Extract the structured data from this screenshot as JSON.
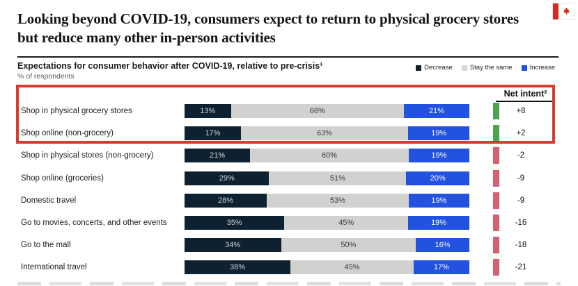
{
  "slide": {
    "title": "Looking beyond COVID-19, consumers expect to return to physical grocery stores but reduce many other in-person activities",
    "flag_icon": "canada-flag"
  },
  "header": {
    "subtitle": "Expectations for consumer behavior after COVID-19, relative to pre-crisis¹",
    "unit_label": "% of respondents",
    "net_intent_label": "Net intent²"
  },
  "legend": {
    "position": "top-right",
    "items": [
      {
        "label": "Decrease",
        "color": "#0e2130"
      },
      {
        "label": "Stay the same",
        "color": "#d9d9d9"
      },
      {
        "label": "Increase",
        "color": "#2351e0"
      }
    ]
  },
  "colors": {
    "decrease": "#0e2130",
    "stay_the_same": "#d1d1cf",
    "increase": "#2351e0",
    "net_positive": "#4ca453",
    "net_negative": "#d66070",
    "highlight_box": "#d93b2b"
  },
  "chart_data": {
    "type": "bar",
    "subtype": "horizontal-stacked-100",
    "title": "Expectations for consumer behavior after COVID-19, relative to pre-crisis¹",
    "unit": "% of respondents",
    "legend_position": "top-right",
    "categories": [
      "Shop in physical grocery stores",
      "Shop online (non-grocery)",
      "Shop in physical stores (non-grocery)",
      "Shop online (groceries)",
      "Domestic travel",
      "Go to movies, concerts, and other events",
      "Go to the mall",
      "International travel"
    ],
    "series": [
      {
        "name": "Decrease",
        "values": [
          13,
          17,
          21,
          29,
          28,
          35,
          34,
          38
        ]
      },
      {
        "name": "Stay the same",
        "values": [
          66,
          63,
          60,
          51,
          53,
          45,
          50,
          45
        ]
      },
      {
        "name": "Increase",
        "values": [
          21,
          19,
          19,
          20,
          19,
          19,
          16,
          17
        ]
      }
    ],
    "net_intent": {
      "label": "Net intent²",
      "values": [
        8,
        2,
        -2,
        -9,
        -9,
        -16,
        -18,
        -21
      ],
      "display": [
        "+8",
        "+2",
        "-2",
        "-9",
        "-9",
        "-16",
        "-18",
        "-21"
      ]
    },
    "highlighted_categories": [
      0,
      1
    ]
  }
}
